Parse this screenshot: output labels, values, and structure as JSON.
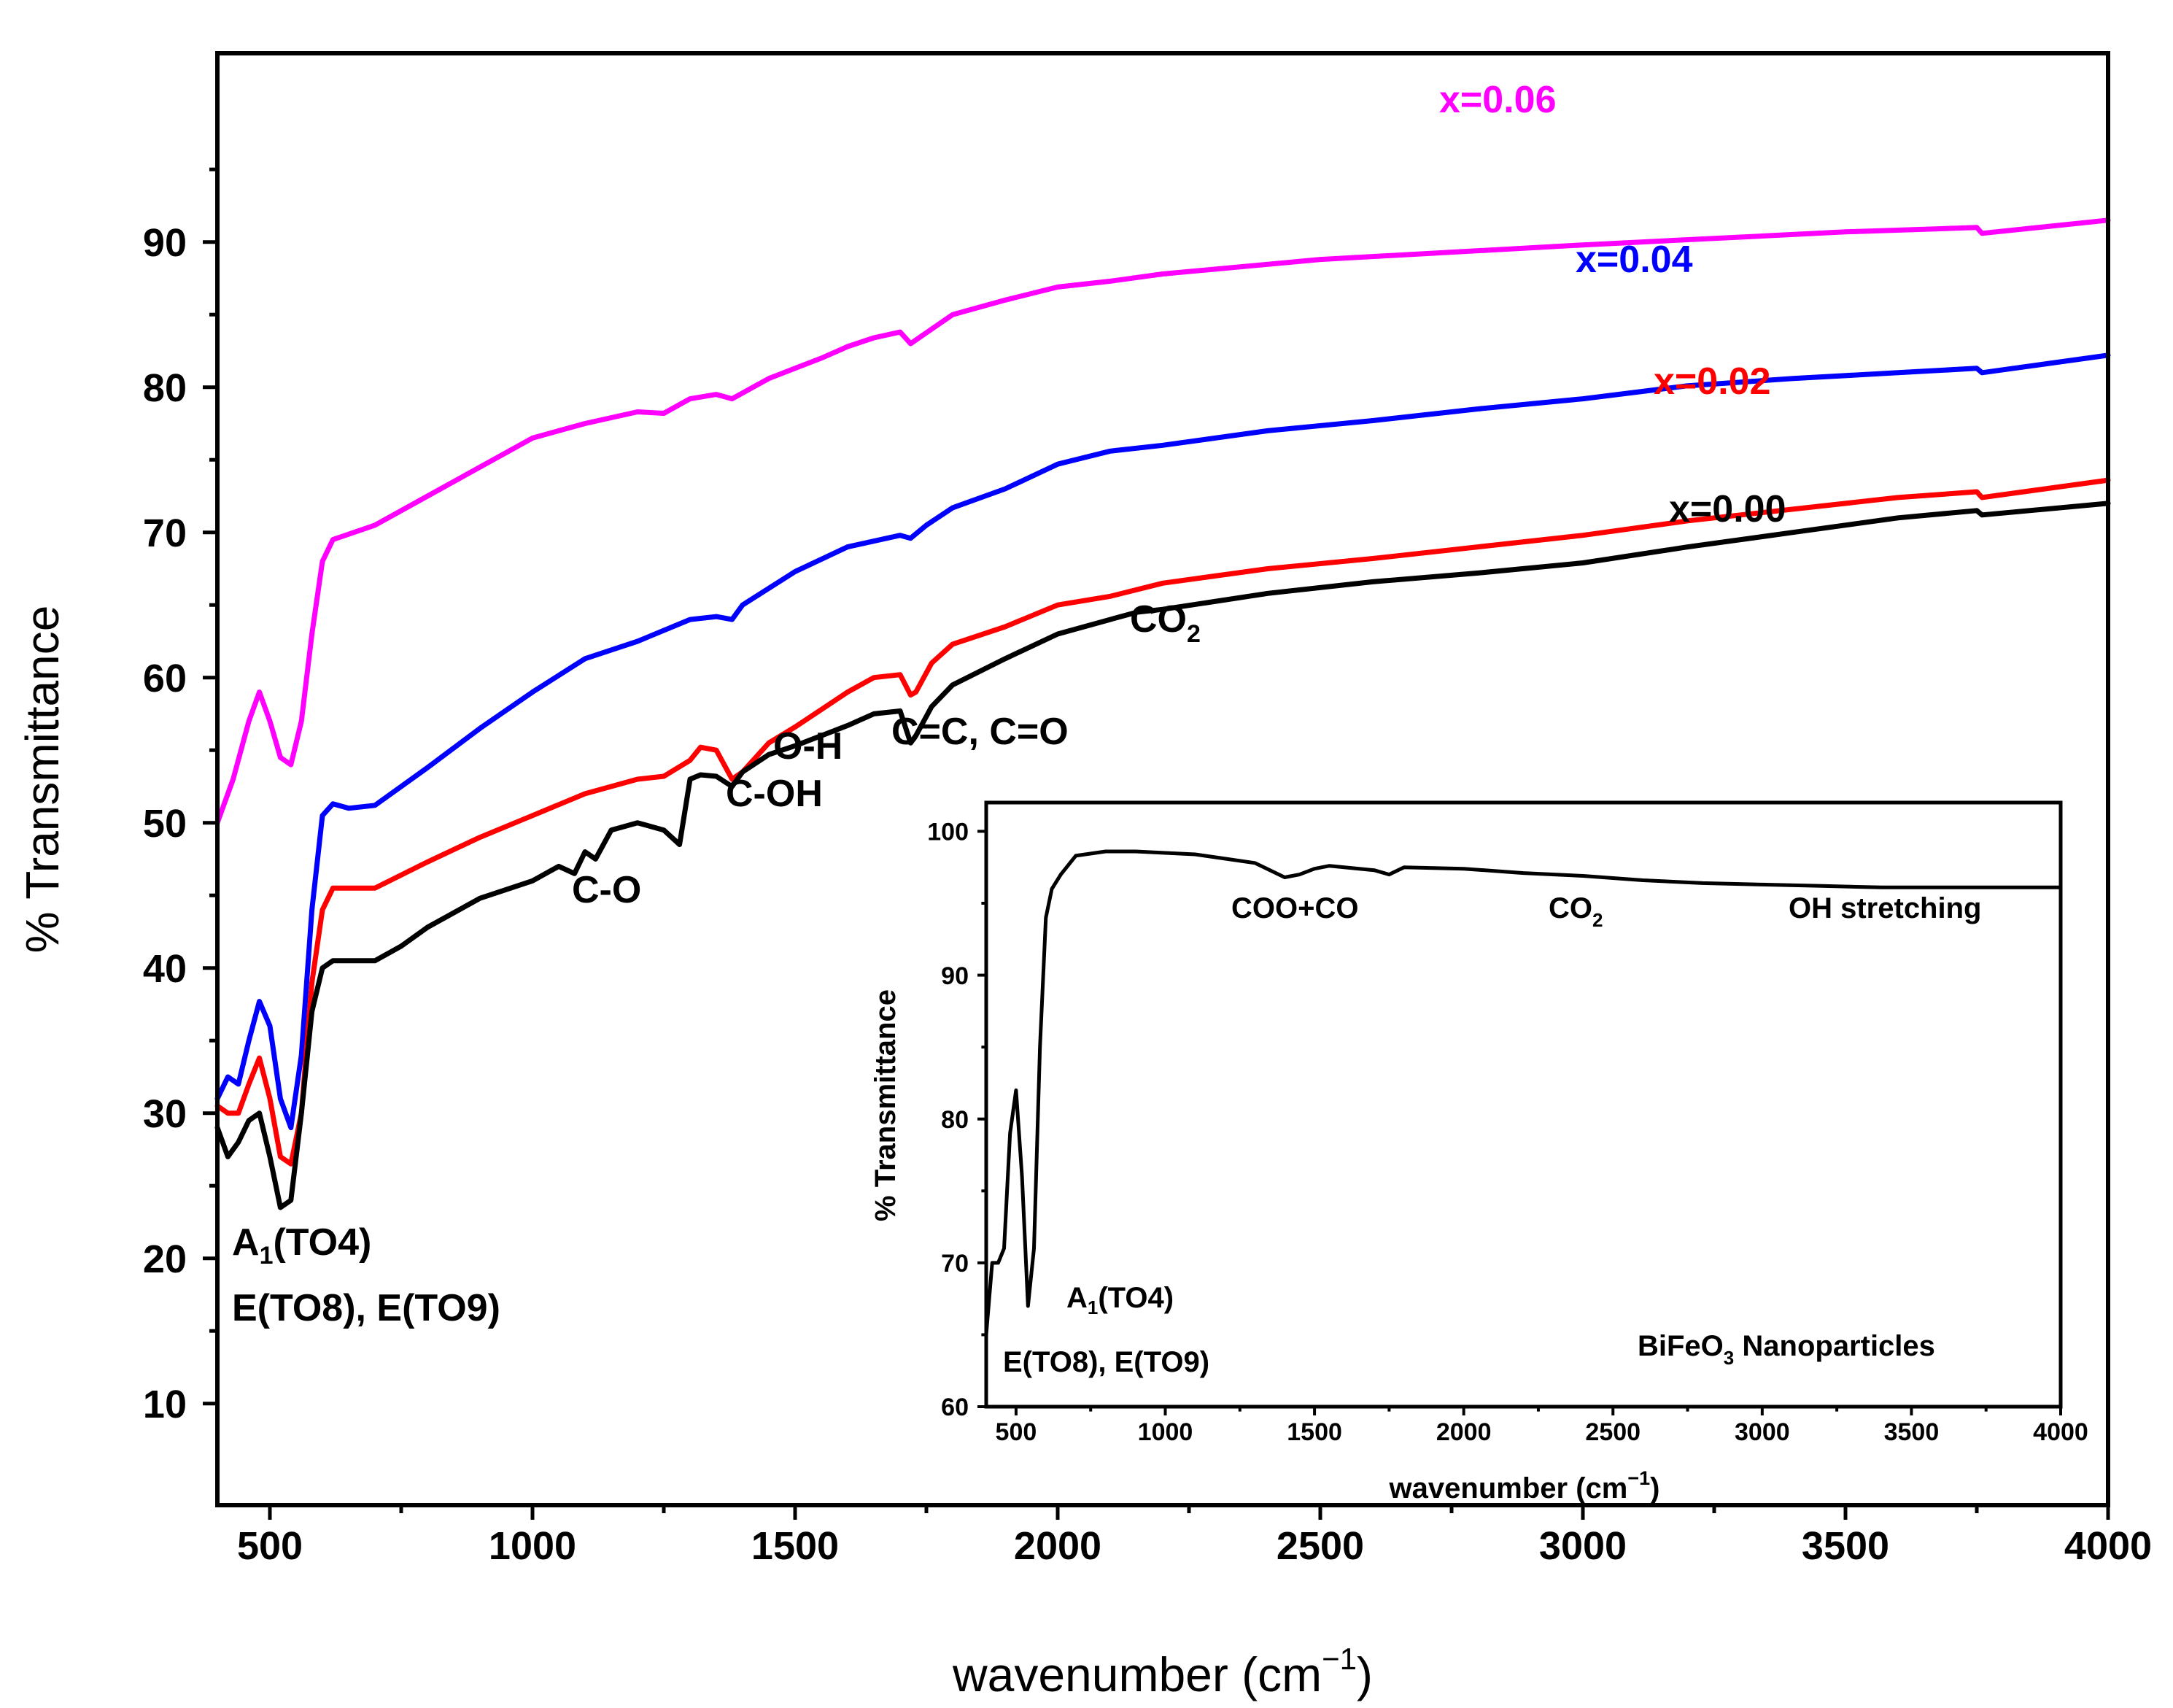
{
  "chart_data": [
    {
      "type": "line",
      "xlabel": "wavenumber (cm",
      "xlabel_sup": "−1",
      "xlabel_close": ")",
      "ylabel": "% Transmittance",
      "xlim": [
        400,
        4000
      ],
      "ylim": [
        3,
        103
      ],
      "xticks": [
        500,
        1000,
        1500,
        2000,
        2500,
        3000,
        3500,
        4000
      ],
      "yticks": [
        10,
        20,
        30,
        40,
        50,
        60,
        70,
        80,
        90
      ],
      "series": [
        {
          "name": "x=0.06",
          "color": "#ff00ff",
          "x": [
            400,
            430,
            460,
            480,
            500,
            520,
            540,
            560,
            580,
            600,
            620,
            700,
            800,
            900,
            1000,
            1100,
            1200,
            1250,
            1300,
            1350,
            1380,
            1420,
            1450,
            1500,
            1550,
            1600,
            1650,
            1700,
            1720,
            1740,
            1800,
            1900,
            2000,
            2100,
            2200,
            2500,
            3000,
            3500,
            3750,
            3760,
            4000
          ],
          "y": [
            50,
            53,
            57,
            59,
            57,
            54.5,
            54,
            57,
            63,
            68,
            69.5,
            70.5,
            72.5,
            74.5,
            76.5,
            77.5,
            78.3,
            78.2,
            79.2,
            79.5,
            79.2,
            80,
            80.6,
            81.3,
            82,
            82.8,
            83.4,
            83.8,
            83,
            83.5,
            85,
            86,
            86.9,
            87.3,
            87.8,
            88.8,
            89.8,
            90.7,
            91,
            90.6,
            91.5
          ]
        },
        {
          "name": "x=0.04",
          "color": "#0000ff",
          "x": [
            400,
            420,
            440,
            460,
            480,
            500,
            520,
            540,
            560,
            580,
            600,
            620,
            650,
            700,
            800,
            900,
            1000,
            1100,
            1200,
            1300,
            1350,
            1380,
            1400,
            1500,
            1600,
            1700,
            1720,
            1750,
            1800,
            1900,
            2000,
            2100,
            2200,
            2400,
            2600,
            2800,
            3000,
            3200,
            3400,
            3600,
            3750,
            3760,
            4000
          ],
          "y": [
            31,
            32.5,
            32,
            35,
            37.7,
            36,
            31,
            29,
            34,
            44,
            50.5,
            51.3,
            51,
            51.2,
            53.8,
            56.5,
            59,
            61.3,
            62.5,
            64,
            64.2,
            64,
            65,
            67.3,
            69,
            69.8,
            69.6,
            70.5,
            71.7,
            73,
            74.7,
            75.6,
            76,
            77,
            77.7,
            78.5,
            79.2,
            80.1,
            80.6,
            81,
            81.3,
            81,
            82.2
          ]
        },
        {
          "name": "x=0.02",
          "color": "#ff0000",
          "x": [
            400,
            420,
            440,
            460,
            480,
            500,
            520,
            540,
            560,
            580,
            600,
            620,
            700,
            800,
            900,
            1000,
            1100,
            1200,
            1250,
            1300,
            1320,
            1350,
            1380,
            1400,
            1450,
            1500,
            1600,
            1650,
            1700,
            1720,
            1730,
            1760,
            1800,
            1900,
            2000,
            2100,
            2200,
            2400,
            2600,
            2800,
            3000,
            3200,
            3400,
            3600,
            3750,
            3760,
            4000
          ],
          "y": [
            30.5,
            30,
            30,
            32,
            33.8,
            31,
            27,
            26.5,
            30,
            39,
            44,
            45.5,
            45.5,
            47.3,
            49,
            50.5,
            52,
            53,
            53.2,
            54.3,
            55.2,
            55,
            53,
            53.5,
            55.5,
            56.6,
            59,
            60,
            60.2,
            58.8,
            59,
            61,
            62.3,
            63.5,
            65,
            65.6,
            66.5,
            67.5,
            68.2,
            69,
            69.8,
            70.8,
            71.6,
            72.4,
            72.8,
            72.4,
            73.6
          ]
        },
        {
          "name": "x=0.00",
          "color": "#000000",
          "x": [
            400,
            420,
            440,
            460,
            480,
            500,
            520,
            540,
            560,
            580,
            600,
            620,
            700,
            750,
            800,
            900,
            1000,
            1050,
            1080,
            1100,
            1120,
            1150,
            1200,
            1250,
            1280,
            1300,
            1320,
            1350,
            1380,
            1400,
            1450,
            1500,
            1600,
            1650,
            1700,
            1720,
            1730,
            1760,
            1800,
            1900,
            2000,
            2100,
            2150,
            2200,
            2400,
            2600,
            2800,
            3000,
            3200,
            3400,
            3600,
            3750,
            3760,
            4000
          ],
          "y": [
            29,
            27,
            28,
            29.5,
            30,
            27,
            23.5,
            24,
            30,
            37,
            40,
            40.5,
            40.5,
            41.5,
            42.8,
            44.8,
            46,
            47,
            46.5,
            48,
            47.5,
            49.5,
            50,
            49.5,
            48.5,
            53,
            53.3,
            53.2,
            52.5,
            53.5,
            54.7,
            55.3,
            56.7,
            57.5,
            57.7,
            55.5,
            56,
            58,
            59.5,
            61.3,
            63,
            64,
            64.5,
            64.7,
            65.8,
            66.6,
            67.2,
            67.9,
            69,
            70,
            71,
            71.5,
            71.2,
            72
          ]
        }
      ],
      "series_labels": [
        "x=0.06",
        "x=0.04",
        "x=0.02",
        "x=0.00"
      ],
      "annotations": {
        "a1_main": "A",
        "a1_sub": "1",
        "a1_rest": "(TO4)",
        "eto": "E(TO8), E(TO9)",
        "co": "C-O",
        "oh": "O-H",
        "coh": "C-OH",
        "cc": "C=C, C=O",
        "co2_main": "CO",
        "co2_sub": "2"
      }
    },
    {
      "type": "line",
      "name": "inset",
      "xlabel": "wavenumber (cm",
      "xlabel_sup": "−1",
      "xlabel_close": ")",
      "ylabel": "% Transmittance",
      "xlim": [
        400,
        4000
      ],
      "ylim": [
        60,
        102
      ],
      "xticks": [
        500,
        1000,
        1500,
        2000,
        2500,
        3000,
        3500,
        4000
      ],
      "yticks": [
        60,
        70,
        80,
        90,
        100
      ],
      "series": [
        {
          "name": "BiFeO3",
          "color": "#000000",
          "x": [
            400,
            420,
            440,
            460,
            480,
            500,
            520,
            540,
            560,
            580,
            600,
            620,
            650,
            700,
            800,
            900,
            1000,
            1100,
            1200,
            1300,
            1400,
            1450,
            1500,
            1550,
            1600,
            1700,
            1750,
            1800,
            2000,
            2200,
            2400,
            2600,
            2800,
            3000,
            3200,
            3400,
            3600,
            3800,
            4000
          ],
          "y": [
            65,
            70,
            70,
            71,
            79,
            82,
            76,
            67,
            71,
            85,
            94,
            96,
            97,
            98.3,
            98.6,
            98.6,
            98.5,
            98.4,
            98.1,
            97.8,
            96.8,
            97,
            97.4,
            97.6,
            97.5,
            97.3,
            97,
            97.5,
            97.4,
            97.1,
            96.9,
            96.6,
            96.4,
            96.3,
            96.2,
            96.1,
            96.1,
            96.1,
            96.1
          ]
        }
      ],
      "annotations": {
        "coo": "COO+CO",
        "co2_main": "CO",
        "co2_sub": "2",
        "oh_stretch": "OH stretching",
        "a1_main": "A",
        "a1_sub": "1",
        "a1_rest": "(TO4)",
        "eto": "E(TO8), E(TO9)",
        "bfo_main": "BiFeO",
        "bfo_sub": "3",
        "bfo_rest": " Nanoparticles"
      }
    }
  ]
}
